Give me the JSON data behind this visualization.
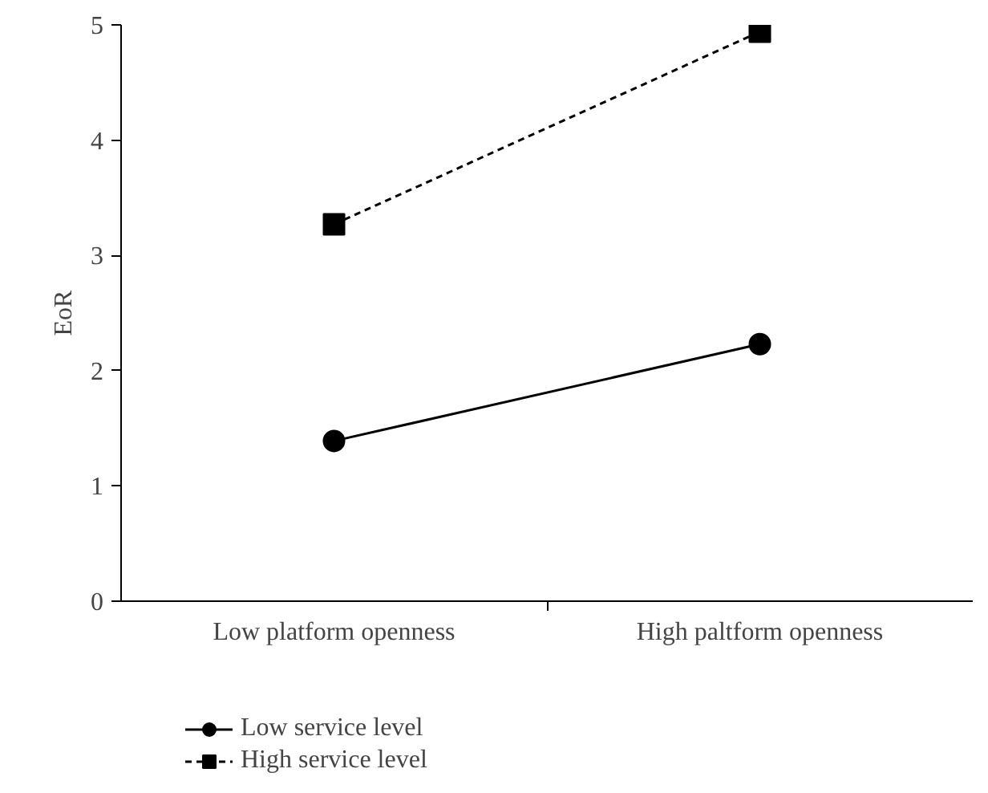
{
  "chart_data": {
    "type": "line",
    "ylabel": "EoR",
    "categories": [
      "Low platform openness",
      "High paltform openness"
    ],
    "series": [
      {
        "name": "Low service level",
        "color": "#000000",
        "values": [
          1.39,
          2.23
        ],
        "marker": "circle",
        "line_style": "solid"
      },
      {
        "name": "High service level",
        "color": "#000000",
        "values": [
          3.27,
          4.94
        ],
        "marker": "square",
        "line_style": "dashed"
      }
    ],
    "ylim": [
      0,
      5
    ],
    "yticks": [
      0,
      1,
      2,
      3,
      4,
      5
    ],
    "grid": false,
    "legend": "bottom left"
  }
}
